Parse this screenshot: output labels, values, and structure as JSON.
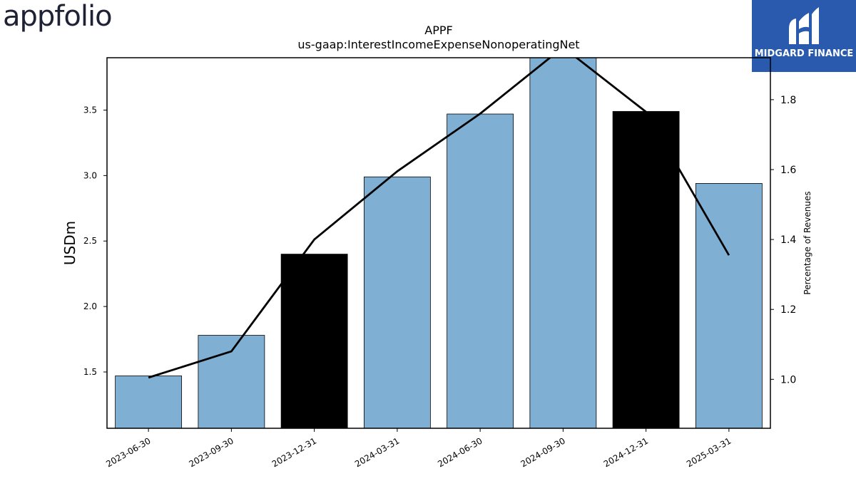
{
  "logos": {
    "left_text": "appfolio",
    "right_text": "MIDGARD FINANCE"
  },
  "colors": {
    "bar_default": "#7fb0d4",
    "bar_highlight": "#000000",
    "line": "#000000",
    "logo_right_bg": "#2a5aad"
  },
  "chart_data": {
    "type": "bar",
    "title": "APPF",
    "subtitle": "us-gaap:InterestIncomeExpenseNonoperatingNet",
    "ylabel": "USDm",
    "y2label": "Percentage of Revenues",
    "categories": [
      "2023-06-30",
      "2023-09-30",
      "2023-12-31",
      "2024-03-31",
      "2024-06-30",
      "2024-09-30",
      "2024-12-31",
      "2025-03-31"
    ],
    "series": [
      {
        "type": "bar",
        "axis": "left",
        "values": [
          1.47,
          1.78,
          2.4,
          2.99,
          3.47,
          3.92,
          3.49,
          2.94
        ],
        "highlight": [
          false,
          false,
          true,
          false,
          false,
          false,
          true,
          false
        ]
      },
      {
        "type": "line",
        "axis": "right",
        "values": [
          1.005,
          1.08,
          1.4,
          1.595,
          1.76,
          1.95,
          1.765,
          1.355
        ]
      }
    ],
    "ylim": [
      1.07,
      3.9
    ],
    "yticks": [
      1.5,
      2.0,
      2.5,
      3.0,
      3.5
    ],
    "ytick_labels": [
      "1.5",
      "2.0",
      "2.5",
      "3.0",
      "3.5"
    ],
    "y2lim": [
      0.86,
      1.92
    ],
    "y2ticks": [
      1.0,
      1.2,
      1.4,
      1.6,
      1.8
    ],
    "y2tick_labels": [
      "1.0",
      "1.2",
      "1.4",
      "1.6",
      "1.8"
    ],
    "grid": false,
    "legend": "none"
  }
}
